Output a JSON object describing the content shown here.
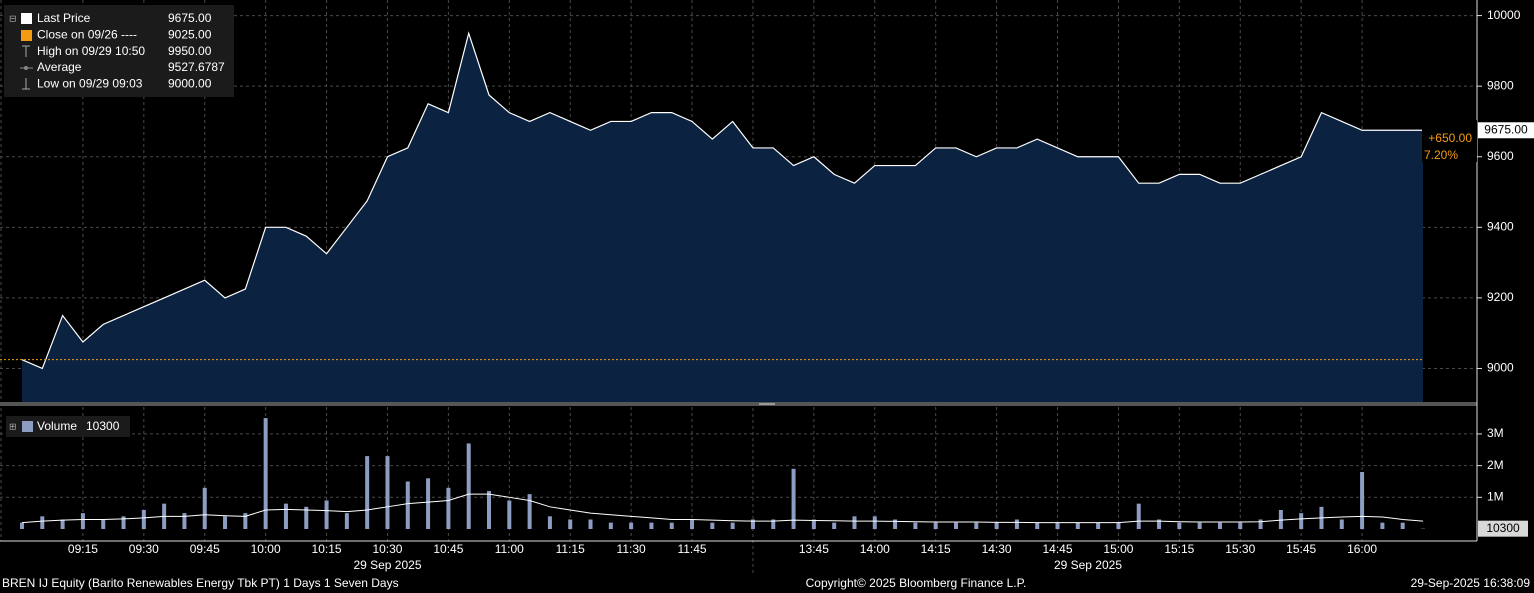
{
  "chart_data": [
    {
      "type": "area",
      "legend": [
        {
          "label": "Last Price",
          "value": {
            "value": 9675,
            "label": "9675.00"
          }
        },
        {
          "label": "Close on 09/26 ----",
          "value": {
            "value": 9025,
            "label": "9025.00"
          }
        },
        {
          "label": "High on 09/29 10:50",
          "value": {
            "value": 9950,
            "label": "9950.00"
          }
        },
        {
          "label": "Average",
          "value": {
            "value": 9527.6787,
            "label": "9527.6787"
          }
        },
        {
          "label": "Low on 09/29 09:03",
          "value": {
            "value": 9000,
            "label": "9000.00"
          }
        }
      ],
      "last_label": {
        "value": 9675,
        "label": "9675.00"
      },
      "change": {
        "value": 650,
        "label": "+650.00"
      },
      "change_pct": {
        "value": 7.2,
        "label": "7.20%"
      },
      "x": [
        "09:00",
        "09:05",
        "09:10",
        "09:15",
        "09:20",
        "09:25",
        "09:30",
        "09:35",
        "09:40",
        "09:45",
        "09:50",
        "09:55",
        "10:00",
        "10:05",
        "10:10",
        "10:15",
        "10:20",
        "10:25",
        "10:30",
        "10:35",
        "10:40",
        "10:45",
        "10:50",
        "10:55",
        "11:00",
        "11:05",
        "11:10",
        "11:15",
        "11:20",
        "11:25",
        "11:30",
        "11:35",
        "11:40",
        "11:45",
        "11:50",
        "11:55",
        "12:00",
        "13:30",
        "13:35",
        "13:40",
        "13:45",
        "13:50",
        "13:55",
        "14:00",
        "14:05",
        "14:10",
        "14:15",
        "14:20",
        "14:25",
        "14:30",
        "14:35",
        "14:40",
        "14:45",
        "14:50",
        "14:55",
        "15:00",
        "15:05",
        "15:10",
        "15:15",
        "15:20",
        "15:25",
        "15:30",
        "15:35",
        "15:40",
        "15:45",
        "15:50",
        "15:55",
        "16:00",
        "16:05",
        "16:10",
        "16:15"
      ],
      "series": [
        {
          "color": "#ffffff",
          "fill": "#0b2240",
          "values": [
            9025,
            9000,
            9150,
            9075,
            9125,
            9150,
            9175,
            9200,
            9225,
            9250,
            9200,
            9225,
            9400,
            9400,
            9375,
            9325,
            9400,
            9475,
            9600,
            9625,
            9750,
            9725,
            9950,
            9775,
            9725,
            9700,
            9725,
            9700,
            9675,
            9700,
            9700,
            9725,
            9725,
            9700,
            9650,
            9700,
            9625,
            9625,
            9625,
            9575,
            9600,
            9550,
            9525,
            9575,
            9575,
            9575,
            9625,
            9625,
            9600,
            9625,
            9625,
            9650,
            9625,
            9600,
            9600,
            9600,
            9525,
            9525,
            9550,
            9550,
            9525,
            9525,
            9550,
            9575,
            9600,
            9725,
            9700,
            9675,
            9675,
            9675,
            9675
          ]
        }
      ],
      "ylim": [
        8905,
        10030
      ],
      "yticks": [
        9000,
        9200,
        9400,
        9600,
        9800,
        10000
      ],
      "grid": true
    },
    {
      "type": "bar",
      "x": [
        "09:00",
        "09:05",
        "09:10",
        "09:15",
        "09:20",
        "09:25",
        "09:30",
        "09:35",
        "09:40",
        "09:45",
        "09:50",
        "09:55",
        "10:00",
        "10:05",
        "10:10",
        "10:15",
        "10:20",
        "10:25",
        "10:30",
        "10:35",
        "10:40",
        "10:45",
        "10:50",
        "10:55",
        "11:00",
        "11:05",
        "11:10",
        "11:15",
        "11:20",
        "11:25",
        "11:30",
        "11:35",
        "11:40",
        "11:45",
        "11:50",
        "11:55",
        "12:00",
        "13:30",
        "13:35",
        "13:40",
        "13:45",
        "13:50",
        "13:55",
        "14:00",
        "14:05",
        "14:10",
        "14:15",
        "14:20",
        "14:25",
        "14:30",
        "14:35",
        "14:40",
        "14:45",
        "14:50",
        "14:55",
        "15:00",
        "15:05",
        "15:10",
        "15:15",
        "15:20",
        "15:25",
        "15:30",
        "15:35",
        "15:40",
        "15:45",
        "15:50",
        "15:55",
        "16:00",
        "16:05",
        "16:10",
        "16:15"
      ],
      "series": [
        {
          "name": "Volume",
          "color": "#8d9dc2",
          "values": [
            200000,
            400000,
            300000,
            500000,
            300000,
            400000,
            600000,
            800000,
            500000,
            1300000,
            400000,
            500000,
            3500000,
            800000,
            700000,
            900000,
            500000,
            2300000,
            2300000,
            1500000,
            1600000,
            1300000,
            2700000,
            1200000,
            900000,
            1100000,
            400000,
            300000,
            300000,
            200000,
            200000,
            200000,
            200000,
            300000,
            200000,
            200000,
            200000,
            300000,
            300000,
            1900000,
            300000,
            200000,
            400000,
            400000,
            300000,
            200000,
            200000,
            200000,
            200000,
            200000,
            300000,
            200000,
            200000,
            200000,
            200000,
            200000,
            800000,
            300000,
            200000,
            200000,
            200000,
            200000,
            300000,
            600000,
            500000,
            700000,
            300000,
            1800000,
            200000,
            200000,
            10300
          ]
        },
        {
          "type": "line",
          "color": "#ffffff",
          "values": [
            200000,
            250000,
            280000,
            300000,
            300000,
            320000,
            350000,
            400000,
            400000,
            450000,
            420000,
            400000,
            600000,
            620000,
            600000,
            580000,
            550000,
            600000,
            700000,
            800000,
            850000,
            900000,
            1100000,
            1100000,
            1000000,
            900000,
            700000,
            600000,
            500000,
            450000,
            400000,
            350000,
            300000,
            300000,
            280000,
            260000,
            250000,
            250000,
            250000,
            280000,
            270000,
            260000,
            250000,
            250000,
            240000,
            230000,
            220000,
            220000,
            220000,
            210000,
            210000,
            200000,
            200000,
            200000,
            200000,
            200000,
            250000,
            250000,
            230000,
            220000,
            220000,
            220000,
            230000,
            280000,
            320000,
            350000,
            380000,
            400000,
            380000,
            300000,
            250000
          ]
        }
      ],
      "ylim": [
        0,
        3850000
      ],
      "yticks": [
        {
          "value": 1000000,
          "label": "1M"
        },
        {
          "value": 2000000,
          "label": "2M"
        },
        {
          "value": 3000000,
          "label": "3M"
        }
      ],
      "xticks": [
        "09:15",
        "09:30",
        "09:45",
        "10:00",
        "10:15",
        "10:30",
        "10:45",
        "11:00",
        "11:15",
        "11:30",
        "11:45",
        "13:45",
        "14:00",
        "14:15",
        "14:30",
        "14:45",
        "15:00",
        "15:15",
        "15:30",
        "15:45",
        "16:00"
      ],
      "x_group_labels": [
        "29 Sep 2025",
        "29 Sep 2025"
      ],
      "grid": true
    }
  ],
  "footer": {
    "security": "BREN IJ Equity (Barito Renewables Energy Tbk PT) 1 Days 1 Seven Days",
    "copyright": "Copyright© 2025 Bloomberg Finance L.P.",
    "timestamp": "29-Sep-2025 16:38:09"
  }
}
